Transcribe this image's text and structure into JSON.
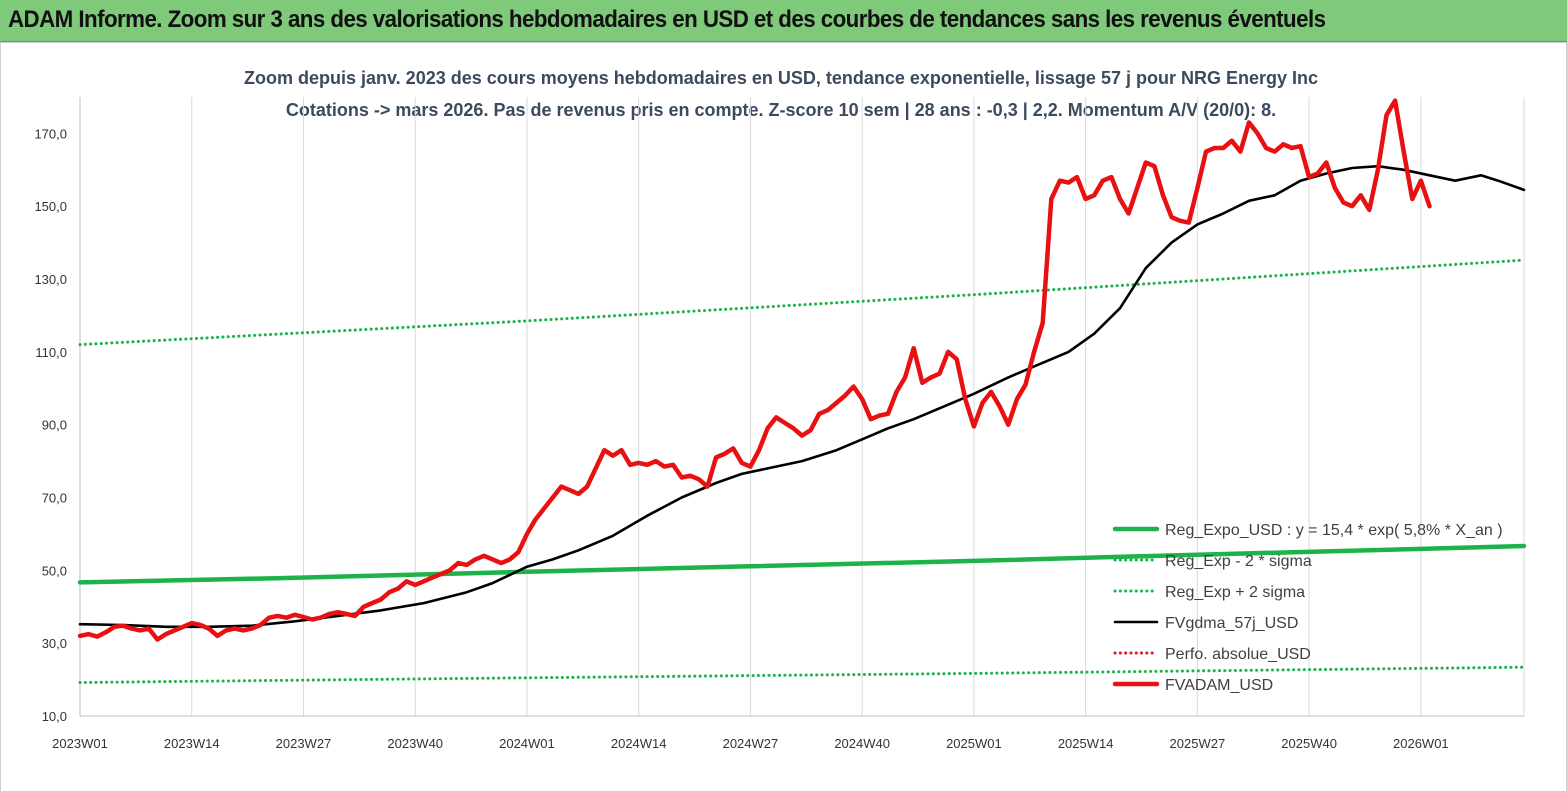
{
  "banner": {
    "title": "ADAM Informe. Zoom sur 3 ans des valorisations hebdomadaires en USD et des courbes de tendances sans les revenus éventuels"
  },
  "colors": {
    "banner": "#7ec97a",
    "reg_expo": "#1db34a",
    "sigma": "#1db34a",
    "fvgdma": "#000000",
    "perfo": "#e01a1a",
    "fvadam": "#e81010"
  },
  "chart_data": {
    "type": "line",
    "title_line1": "Zoom depuis janv. 2023 des cours moyens hebdomadaires en USD, tendance exponentielle, lissage 57 j pour NRG Energy Inc",
    "title_line2": "Cotations -> mars 2026. Pas de revenus pris en compte. Z-score 10 sem | 28 ans : -0,3 | 2,2. Momentum A/V (20/0): 8.",
    "ylim": [
      10,
      180
    ],
    "yticks": [
      "10,0",
      "30,0",
      "50,0",
      "70,0",
      "90,0",
      "110,0",
      "130,0",
      "150,0",
      "170,0"
    ],
    "ytick_values": [
      10,
      30,
      50,
      70,
      90,
      110,
      130,
      150,
      170
    ],
    "xlim": [
      0,
      168
    ],
    "xticks": [
      "2023W01",
      "2023W14",
      "2023W27",
      "2023W40",
      "2024W01",
      "2024W14",
      "2024W27",
      "2024W40",
      "2025W01",
      "2025W14",
      "2025W27",
      "2025W40",
      "2026W01"
    ],
    "xtick_positions": [
      0,
      13,
      26,
      39,
      52,
      65,
      78,
      91,
      104,
      117,
      130,
      143,
      156
    ],
    "grid": "vertical",
    "legend_position": "lower-right",
    "series": [
      {
        "name": "Reg_Expo_USD : y = 15,4 * exp( 5,8% *  X_an )",
        "style": "thick",
        "color": "#1db34a",
        "points": [
          [
            0,
            46.7
          ],
          [
            24,
            47.9
          ],
          [
            52,
            49.6
          ],
          [
            78,
            51.1
          ],
          [
            104,
            52.6
          ],
          [
            130,
            54.3
          ],
          [
            156,
            55.9
          ],
          [
            168,
            56.7
          ]
        ]
      },
      {
        "name": "Reg_Exp - 2 * sigma",
        "style": "dotted",
        "color": "#1db34a",
        "points": [
          [
            0,
            19.2
          ],
          [
            52,
            20.5
          ],
          [
            104,
            21.7
          ],
          [
            168,
            23.4
          ]
        ]
      },
      {
        "name": "Reg_Exp + 2 sigma",
        "style": "dotted",
        "color": "#1db34a",
        "points": [
          [
            0,
            112.0
          ],
          [
            52,
            118.5
          ],
          [
            104,
            125.7
          ],
          [
            168,
            135.2
          ]
        ]
      },
      {
        "name": "FVgdma_57j_USD",
        "style": "solid",
        "color": "#000000",
        "points": [
          [
            0,
            35.2
          ],
          [
            5,
            35.0
          ],
          [
            10,
            34.5
          ],
          [
            15,
            34.5
          ],
          [
            20,
            34.8
          ],
          [
            25,
            36.0
          ],
          [
            30,
            37.5
          ],
          [
            35,
            39.0
          ],
          [
            40,
            41.0
          ],
          [
            45,
            44.0
          ],
          [
            48,
            46.5
          ],
          [
            52,
            51.0
          ],
          [
            55,
            53.0
          ],
          [
            58,
            55.5
          ],
          [
            62,
            59.5
          ],
          [
            66,
            65.0
          ],
          [
            70,
            70.0
          ],
          [
            74,
            74.0
          ],
          [
            77,
            76.5
          ],
          [
            80,
            78.0
          ],
          [
            84,
            80.0
          ],
          [
            88,
            83.0
          ],
          [
            91,
            86.0
          ],
          [
            94,
            89.0
          ],
          [
            97,
            91.5
          ],
          [
            100,
            94.5
          ],
          [
            104,
            98.5
          ],
          [
            108,
            103.0
          ],
          [
            112,
            107.0
          ],
          [
            115,
            110.0
          ],
          [
            118,
            115.0
          ],
          [
            121,
            122.0
          ],
          [
            124,
            133.0
          ],
          [
            127,
            140.0
          ],
          [
            130,
            145.0
          ],
          [
            133,
            148.0
          ],
          [
            136,
            151.5
          ],
          [
            139,
            153.0
          ],
          [
            142,
            157.0
          ],
          [
            145,
            159.0
          ],
          [
            148,
            160.5
          ],
          [
            151,
            161.0
          ],
          [
            154,
            160.0
          ],
          [
            157,
            158.5
          ],
          [
            160,
            157.0
          ],
          [
            163,
            158.5
          ],
          [
            165,
            157.0
          ],
          [
            168,
            154.5
          ]
        ]
      },
      {
        "name": "Perfo. absolue_USD",
        "style": "dotted",
        "color": "#e01a1a",
        "points": []
      },
      {
        "name": "FVADAM_USD",
        "style": "thick",
        "color": "#e81010",
        "points": [
          [
            0,
            32.0
          ],
          [
            1,
            32.5
          ],
          [
            2,
            31.8
          ],
          [
            3,
            33.0
          ],
          [
            4,
            34.5
          ],
          [
            5,
            34.8
          ],
          [
            6,
            34.0
          ],
          [
            7,
            33.5
          ],
          [
            8,
            34.0
          ],
          [
            9,
            31.0
          ],
          [
            10,
            32.5
          ],
          [
            11,
            33.5
          ],
          [
            12,
            34.5
          ],
          [
            13,
            35.5
          ],
          [
            14,
            35.0
          ],
          [
            15,
            34.0
          ],
          [
            16,
            32.0
          ],
          [
            17,
            33.5
          ],
          [
            18,
            34.0
          ],
          [
            19,
            33.5
          ],
          [
            20,
            34.0
          ],
          [
            21,
            35.0
          ],
          [
            22,
            37.0
          ],
          [
            23,
            37.5
          ],
          [
            24,
            37.0
          ],
          [
            25,
            37.8
          ],
          [
            26,
            37.2
          ],
          [
            27,
            36.5
          ],
          [
            28,
            37.0
          ],
          [
            29,
            38.0
          ],
          [
            30,
            38.5
          ],
          [
            31,
            38.0
          ],
          [
            32,
            37.5
          ],
          [
            33,
            40.0
          ],
          [
            34,
            41.0
          ],
          [
            35,
            42.0
          ],
          [
            36,
            44.0
          ],
          [
            37,
            45.0
          ],
          [
            38,
            47.0
          ],
          [
            39,
            46.0
          ],
          [
            40,
            47.0
          ],
          [
            41,
            48.0
          ],
          [
            42,
            49.0
          ],
          [
            43,
            50.0
          ],
          [
            44,
            52.0
          ],
          [
            45,
            51.5
          ],
          [
            46,
            53.0
          ],
          [
            47,
            54.0
          ],
          [
            48,
            53.0
          ],
          [
            49,
            52.0
          ],
          [
            50,
            53.0
          ],
          [
            51,
            55.0
          ],
          [
            52,
            60.0
          ],
          [
            53,
            64.0
          ],
          [
            54,
            67.0
          ],
          [
            55,
            70.0
          ],
          [
            56,
            73.0
          ],
          [
            57,
            72.0
          ],
          [
            58,
            71.0
          ],
          [
            59,
            73.0
          ],
          [
            60,
            78.0
          ],
          [
            61,
            83.0
          ],
          [
            62,
            81.5
          ],
          [
            63,
            83.0
          ],
          [
            64,
            79.0
          ],
          [
            65,
            79.5
          ],
          [
            66,
            79.0
          ],
          [
            67,
            80.0
          ],
          [
            68,
            78.5
          ],
          [
            69,
            79.0
          ],
          [
            70,
            75.5
          ],
          [
            71,
            76.0
          ],
          [
            72,
            75.0
          ],
          [
            73,
            73.0
          ],
          [
            74,
            81.0
          ],
          [
            75,
            82.0
          ],
          [
            76,
            83.5
          ],
          [
            77,
            79.5
          ],
          [
            78,
            78.5
          ],
          [
            79,
            83.0
          ],
          [
            80,
            89.0
          ],
          [
            81,
            92.0
          ],
          [
            82,
            90.5
          ],
          [
            83,
            89.0
          ],
          [
            84,
            87.0
          ],
          [
            85,
            88.5
          ],
          [
            86,
            93.0
          ],
          [
            87,
            94.0
          ],
          [
            88,
            96.0
          ],
          [
            89,
            98.0
          ],
          [
            90,
            100.5
          ],
          [
            91,
            97.0
          ],
          [
            92,
            91.5
          ],
          [
            93,
            92.5
          ],
          [
            94,
            93.0
          ],
          [
            95,
            99.0
          ],
          [
            96,
            103.0
          ],
          [
            97,
            111.0
          ],
          [
            98,
            101.5
          ],
          [
            99,
            103.0
          ],
          [
            100,
            104.0
          ],
          [
            101,
            110.0
          ],
          [
            102,
            108.0
          ],
          [
            103,
            97.0
          ],
          [
            104,
            89.5
          ],
          [
            105,
            96.0
          ],
          [
            106,
            99.0
          ],
          [
            107,
            95.0
          ],
          [
            108,
            90.0
          ],
          [
            109,
            97.0
          ],
          [
            110,
            101.0
          ],
          [
            111,
            110.0
          ],
          [
            112,
            118.0
          ],
          [
            113,
            152.0
          ],
          [
            114,
            157.0
          ],
          [
            115,
            156.5
          ],
          [
            116,
            158.0
          ],
          [
            117,
            152.0
          ],
          [
            118,
            153.0
          ],
          [
            119,
            157.0
          ],
          [
            120,
            158.0
          ],
          [
            121,
            152.0
          ],
          [
            122,
            148.0
          ],
          [
            123,
            155.0
          ],
          [
            124,
            162.0
          ],
          [
            125,
            161.0
          ],
          [
            126,
            153.0
          ],
          [
            127,
            147.0
          ],
          [
            128,
            146.0
          ],
          [
            129,
            145.5
          ],
          [
            130,
            155.0
          ],
          [
            131,
            165.0
          ],
          [
            132,
            166.0
          ],
          [
            133,
            166.0
          ],
          [
            134,
            168.0
          ],
          [
            135,
            165.0
          ],
          [
            136,
            173.0
          ],
          [
            137,
            170.0
          ],
          [
            138,
            166.0
          ],
          [
            139,
            165.0
          ],
          [
            140,
            167.0
          ],
          [
            141,
            166.0
          ],
          [
            142,
            166.5
          ],
          [
            143,
            158.0
          ],
          [
            144,
            159.0
          ],
          [
            145,
            162.0
          ],
          [
            146,
            155.0
          ],
          [
            147,
            151.0
          ],
          [
            148,
            150.0
          ],
          [
            149,
            153.0
          ],
          [
            150,
            149.0
          ],
          [
            151,
            160.0
          ],
          [
            152,
            175.0
          ],
          [
            153,
            179.0
          ],
          [
            154,
            165.0
          ],
          [
            155,
            152.0
          ],
          [
            156,
            157.0
          ],
          [
            157,
            150.0
          ]
        ]
      }
    ]
  }
}
